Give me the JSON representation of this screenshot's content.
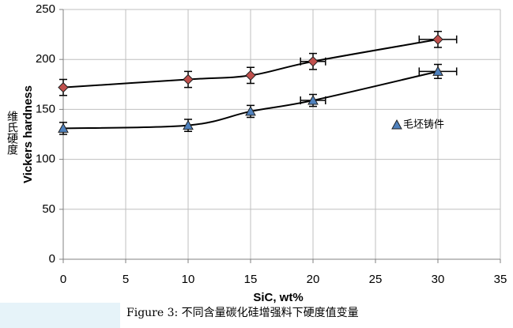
{
  "chart_data": {
    "type": "line",
    "x": [
      0,
      10,
      15,
      20,
      30
    ],
    "series": [
      {
        "color": "#c0504d",
        "marker": "diamond",
        "values": [
          172,
          180,
          184,
          198,
          220
        ],
        "y_error": [
          8,
          8,
          8,
          8,
          8
        ],
        "x_error": [
          0,
          0,
          0,
          1,
          1.5
        ]
      },
      {
        "name": "毛坯铸件",
        "color": "#4f81bd",
        "marker": "triangle",
        "values": [
          131,
          134,
          148,
          159,
          188
        ],
        "y_error": [
          6,
          6,
          6,
          6,
          7
        ],
        "x_error": [
          0,
          0,
          0,
          1,
          1.5
        ]
      }
    ],
    "x_label": "SiC, wt%",
    "y_label": "Vickers hardness",
    "y_label_translation": "维氏硬度",
    "caption": "Figure 3: 不同含量碳化硅增强料下硬度值变量",
    "xlim": [
      0,
      35
    ],
    "xticks": [
      0,
      5,
      10,
      15,
      20,
      25,
      30,
      35
    ],
    "ylim": [
      0,
      250
    ],
    "yticks": [
      0,
      50,
      100,
      150,
      200,
      250
    ],
    "grid": true
  }
}
